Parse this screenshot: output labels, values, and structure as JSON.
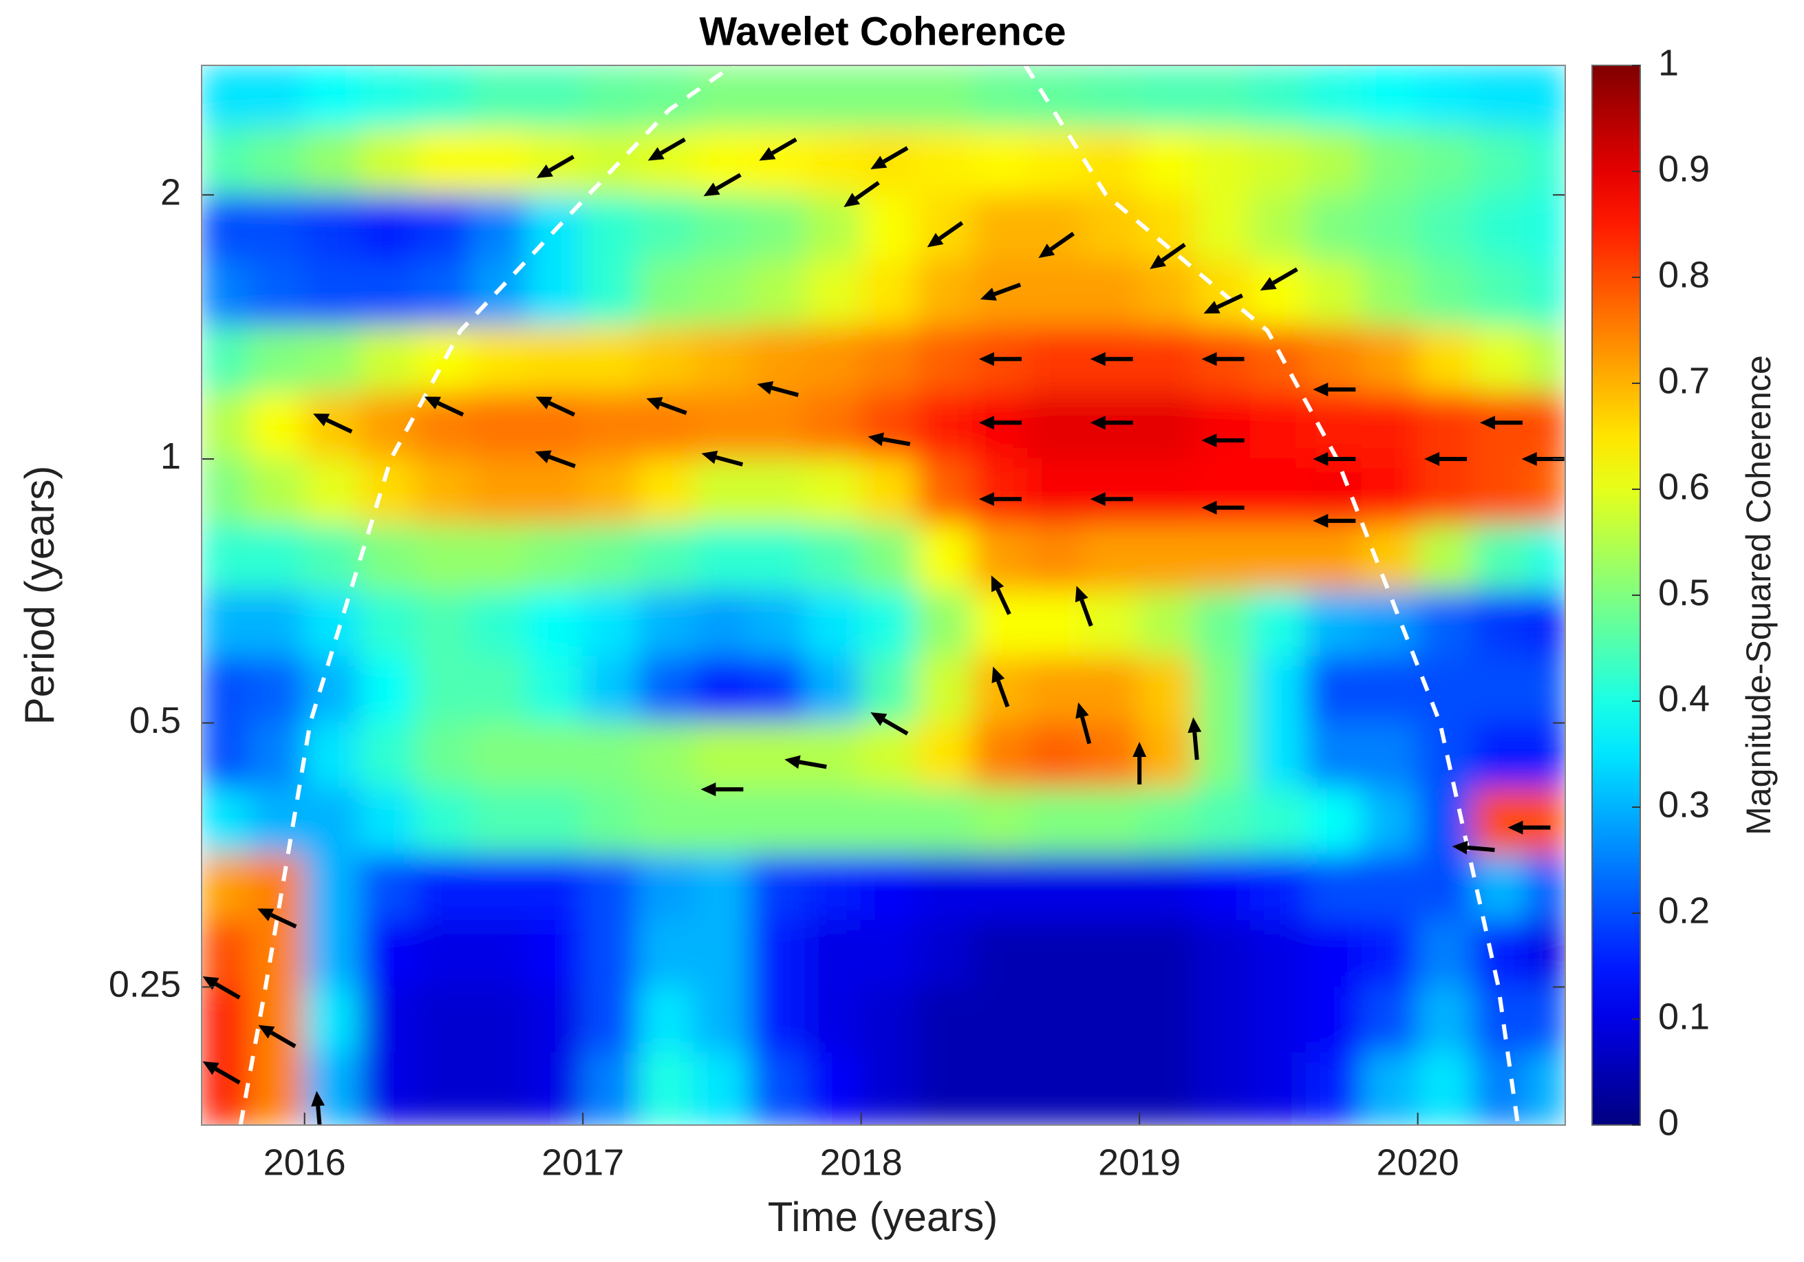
{
  "chart_data": {
    "type": "heatmap",
    "title": "Wavelet Coherence",
    "xlabel": "Time (years)",
    "ylabel": "Period (years)",
    "colorbar_label": "Magnitude-Squared Coherence",
    "colormap": "jet",
    "yscale": "log",
    "xlim": [
      2015.63,
      2020.53
    ],
    "ylim": [
      0.174,
      2.81
    ],
    "xticks": [
      2016,
      2017,
      2018,
      2019,
      2020
    ],
    "yticks": [
      0.25,
      0.5,
      1,
      2
    ],
    "clim": [
      0,
      1
    ],
    "cticks": [
      0,
      0.1,
      0.2,
      0.3,
      0.4,
      0.5,
      0.6,
      0.7,
      0.8,
      0.9,
      1
    ],
    "x": [
      2015.7,
      2015.9,
      2016.1,
      2016.3,
      2016.5,
      2016.7,
      2016.9,
      2017.1,
      2017.3,
      2017.5,
      2017.7,
      2017.9,
      2018.1,
      2018.3,
      2018.5,
      2018.7,
      2018.9,
      2019.1,
      2019.3,
      2019.5,
      2019.7,
      2019.9,
      2020.1,
      2020.3,
      2020.5
    ],
    "y": [
      2.594,
      2.181,
      1.834,
      1.542,
      1.297,
      1.091,
      0.917,
      0.771,
      0.648,
      0.545,
      0.459,
      0.386,
      0.324,
      0.273,
      0.229,
      0.193
    ],
    "z": [
      [
        0.35,
        0.35,
        0.38,
        0.4,
        0.42,
        0.45,
        0.45,
        0.47,
        0.48,
        0.5,
        0.5,
        0.5,
        0.5,
        0.5,
        0.48,
        0.47,
        0.46,
        0.45,
        0.45,
        0.43,
        0.4,
        0.38,
        0.36,
        0.35,
        0.35
      ],
      [
        0.45,
        0.48,
        0.52,
        0.58,
        0.62,
        0.62,
        0.6,
        0.58,
        0.6,
        0.62,
        0.63,
        0.64,
        0.65,
        0.64,
        0.63,
        0.64,
        0.65,
        0.62,
        0.6,
        0.58,
        0.55,
        0.5,
        0.48,
        0.45,
        0.42
      ],
      [
        0.2,
        0.2,
        0.18,
        0.15,
        0.18,
        0.25,
        0.35,
        0.42,
        0.45,
        0.48,
        0.5,
        0.55,
        0.62,
        0.66,
        0.7,
        0.7,
        0.68,
        0.66,
        0.6,
        0.55,
        0.5,
        0.48,
        0.45,
        0.42,
        0.4
      ],
      [
        0.25,
        0.22,
        0.2,
        0.2,
        0.22,
        0.28,
        0.35,
        0.42,
        0.5,
        0.52,
        0.55,
        0.6,
        0.65,
        0.7,
        0.72,
        0.72,
        0.72,
        0.7,
        0.66,
        0.62,
        0.58,
        0.52,
        0.48,
        0.45,
        0.42
      ],
      [
        0.45,
        0.5,
        0.52,
        0.58,
        0.62,
        0.65,
        0.66,
        0.66,
        0.68,
        0.7,
        0.72,
        0.73,
        0.75,
        0.78,
        0.8,
        0.82,
        0.82,
        0.82,
        0.8,
        0.78,
        0.75,
        0.72,
        0.66,
        0.6,
        0.55
      ],
      [
        0.55,
        0.62,
        0.68,
        0.72,
        0.75,
        0.76,
        0.76,
        0.75,
        0.75,
        0.74,
        0.74,
        0.76,
        0.8,
        0.85,
        0.88,
        0.9,
        0.9,
        0.9,
        0.88,
        0.86,
        0.85,
        0.85,
        0.82,
        0.8,
        0.8
      ],
      [
        0.5,
        0.55,
        0.6,
        0.66,
        0.7,
        0.72,
        0.72,
        0.7,
        0.65,
        0.58,
        0.58,
        0.6,
        0.66,
        0.78,
        0.85,
        0.88,
        0.88,
        0.88,
        0.87,
        0.87,
        0.88,
        0.86,
        0.82,
        0.8,
        0.78
      ],
      [
        0.42,
        0.42,
        0.45,
        0.5,
        0.52,
        0.52,
        0.5,
        0.48,
        0.45,
        0.42,
        0.42,
        0.45,
        0.5,
        0.62,
        0.72,
        0.74,
        0.72,
        0.72,
        0.72,
        0.72,
        0.72,
        0.68,
        0.55,
        0.45,
        0.4
      ],
      [
        0.3,
        0.3,
        0.35,
        0.42,
        0.45,
        0.42,
        0.38,
        0.35,
        0.3,
        0.28,
        0.3,
        0.35,
        0.4,
        0.52,
        0.62,
        0.62,
        0.6,
        0.55,
        0.48,
        0.4,
        0.3,
        0.28,
        0.22,
        0.18,
        0.15
      ],
      [
        0.2,
        0.22,
        0.3,
        0.38,
        0.45,
        0.45,
        0.4,
        0.32,
        0.22,
        0.15,
        0.18,
        0.3,
        0.45,
        0.58,
        0.7,
        0.72,
        0.72,
        0.68,
        0.5,
        0.35,
        0.2,
        0.2,
        0.2,
        0.2,
        0.2
      ],
      [
        0.2,
        0.25,
        0.35,
        0.42,
        0.48,
        0.5,
        0.5,
        0.5,
        0.52,
        0.55,
        0.55,
        0.55,
        0.58,
        0.65,
        0.75,
        0.78,
        0.76,
        0.7,
        0.5,
        0.35,
        0.25,
        0.25,
        0.2,
        0.15,
        0.15
      ],
      [
        0.35,
        0.3,
        0.3,
        0.35,
        0.42,
        0.45,
        0.45,
        0.48,
        0.5,
        0.5,
        0.5,
        0.5,
        0.5,
        0.5,
        0.52,
        0.5,
        0.5,
        0.48,
        0.45,
        0.42,
        0.38,
        0.3,
        0.2,
        0.8,
        0.8
      ],
      [
        0.72,
        0.75,
        0.3,
        0.2,
        0.15,
        0.15,
        0.15,
        0.2,
        0.28,
        0.3,
        0.18,
        0.15,
        0.12,
        0.1,
        0.1,
        0.1,
        0.1,
        0.1,
        0.12,
        0.15,
        0.2,
        0.2,
        0.2,
        0.3,
        0.2
      ],
      [
        0.8,
        0.75,
        0.3,
        0.12,
        0.1,
        0.1,
        0.12,
        0.2,
        0.3,
        0.3,
        0.15,
        0.1,
        0.1,
        0.08,
        0.05,
        0.05,
        0.05,
        0.05,
        0.08,
        0.1,
        0.12,
        0.15,
        0.25,
        0.15,
        0.1
      ],
      [
        0.85,
        0.75,
        0.35,
        0.1,
        0.08,
        0.08,
        0.1,
        0.2,
        0.35,
        0.3,
        0.15,
        0.1,
        0.08,
        0.05,
        0.05,
        0.05,
        0.05,
        0.05,
        0.08,
        0.1,
        0.12,
        0.2,
        0.3,
        0.2,
        0.2
      ],
      [
        0.85,
        0.75,
        0.3,
        0.1,
        0.08,
        0.08,
        0.1,
        0.25,
        0.4,
        0.35,
        0.2,
        0.12,
        0.08,
        0.05,
        0.05,
        0.05,
        0.05,
        0.05,
        0.08,
        0.1,
        0.15,
        0.3,
        0.35,
        0.25,
        0.3
      ]
    ],
    "arrows": [
      {
        "x": 2016.9,
        "y": 2.15,
        "angle": 210
      },
      {
        "x": 2017.3,
        "y": 2.25,
        "angle": 210
      },
      {
        "x": 2017.7,
        "y": 2.25,
        "angle": 210
      },
      {
        "x": 2018.1,
        "y": 2.2,
        "angle": 210
      },
      {
        "x": 2017.5,
        "y": 2.05,
        "angle": 210
      },
      {
        "x": 2018.0,
        "y": 2.0,
        "angle": 215
      },
      {
        "x": 2018.3,
        "y": 1.8,
        "angle": 215
      },
      {
        "x": 2018.7,
        "y": 1.75,
        "angle": 215
      },
      {
        "x": 2019.1,
        "y": 1.7,
        "angle": 215
      },
      {
        "x": 2019.5,
        "y": 1.6,
        "angle": 210
      },
      {
        "x": 2018.5,
        "y": 1.55,
        "angle": 200
      },
      {
        "x": 2019.3,
        "y": 1.5,
        "angle": 205
      },
      {
        "x": 2016.1,
        "y": 1.1,
        "angle": 155
      },
      {
        "x": 2016.5,
        "y": 1.15,
        "angle": 155
      },
      {
        "x": 2016.9,
        "y": 1.15,
        "angle": 155
      },
      {
        "x": 2017.3,
        "y": 1.15,
        "angle": 160
      },
      {
        "x": 2017.7,
        "y": 1.2,
        "angle": 165
      },
      {
        "x": 2016.9,
        "y": 1.0,
        "angle": 160
      },
      {
        "x": 2017.5,
        "y": 1.0,
        "angle": 165
      },
      {
        "x": 2018.1,
        "y": 1.05,
        "angle": 170
      },
      {
        "x": 2018.5,
        "y": 1.3,
        "angle": 180
      },
      {
        "x": 2018.9,
        "y": 1.3,
        "angle": 180
      },
      {
        "x": 2019.3,
        "y": 1.3,
        "angle": 180
      },
      {
        "x": 2019.7,
        "y": 1.2,
        "angle": 180
      },
      {
        "x": 2018.5,
        "y": 1.1,
        "angle": 180
      },
      {
        "x": 2018.9,
        "y": 1.1,
        "angle": 180
      },
      {
        "x": 2019.3,
        "y": 1.05,
        "angle": 180
      },
      {
        "x": 2019.7,
        "y": 1.0,
        "angle": 180
      },
      {
        "x": 2020.1,
        "y": 1.0,
        "angle": 180
      },
      {
        "x": 2020.45,
        "y": 1.0,
        "angle": 180
      },
      {
        "x": 2020.3,
        "y": 1.1,
        "angle": 180
      },
      {
        "x": 2018.5,
        "y": 0.9,
        "angle": 180
      },
      {
        "x": 2018.9,
        "y": 0.9,
        "angle": 180
      },
      {
        "x": 2019.3,
        "y": 0.88,
        "angle": 180
      },
      {
        "x": 2019.7,
        "y": 0.85,
        "angle": 180
      },
      {
        "x": 2018.5,
        "y": 0.7,
        "angle": 115
      },
      {
        "x": 2018.8,
        "y": 0.68,
        "angle": 110
      },
      {
        "x": 2018.5,
        "y": 0.55,
        "angle": 110
      },
      {
        "x": 2018.8,
        "y": 0.5,
        "angle": 105
      },
      {
        "x": 2019.0,
        "y": 0.45,
        "angle": 90
      },
      {
        "x": 2019.2,
        "y": 0.48,
        "angle": 95
      },
      {
        "x": 2018.1,
        "y": 0.5,
        "angle": 150
      },
      {
        "x": 2017.8,
        "y": 0.45,
        "angle": 170
      },
      {
        "x": 2017.5,
        "y": 0.42,
        "angle": 180
      },
      {
        "x": 2020.4,
        "y": 0.38,
        "angle": 180
      },
      {
        "x": 2020.2,
        "y": 0.36,
        "angle": 175
      },
      {
        "x": 2015.7,
        "y": 0.25,
        "angle": 150
      },
      {
        "x": 2015.7,
        "y": 0.2,
        "angle": 150
      },
      {
        "x": 2015.9,
        "y": 0.3,
        "angle": 155
      },
      {
        "x": 2015.9,
        "y": 0.22,
        "angle": 150
      },
      {
        "x": 2016.05,
        "y": 0.18,
        "angle": 95
      }
    ],
    "arrow_color": "#000000",
    "coi": {
      "color": "#ffffff",
      "x": [
        2015.77,
        2015.86,
        2016.02,
        2016.31,
        2016.56,
        2017.02,
        2017.31,
        2017.54,
        null,
        2018.59,
        2018.88,
        2019.46,
        2019.71,
        2020.08,
        2020.29,
        2020.36
      ],
      "y": [
        0.174,
        0.25,
        0.5,
        1,
        1.4,
        2,
        2.5,
        2.81,
        null,
        2.81,
        2,
        1.4,
        1,
        0.5,
        0.25,
        0.174
      ]
    }
  }
}
